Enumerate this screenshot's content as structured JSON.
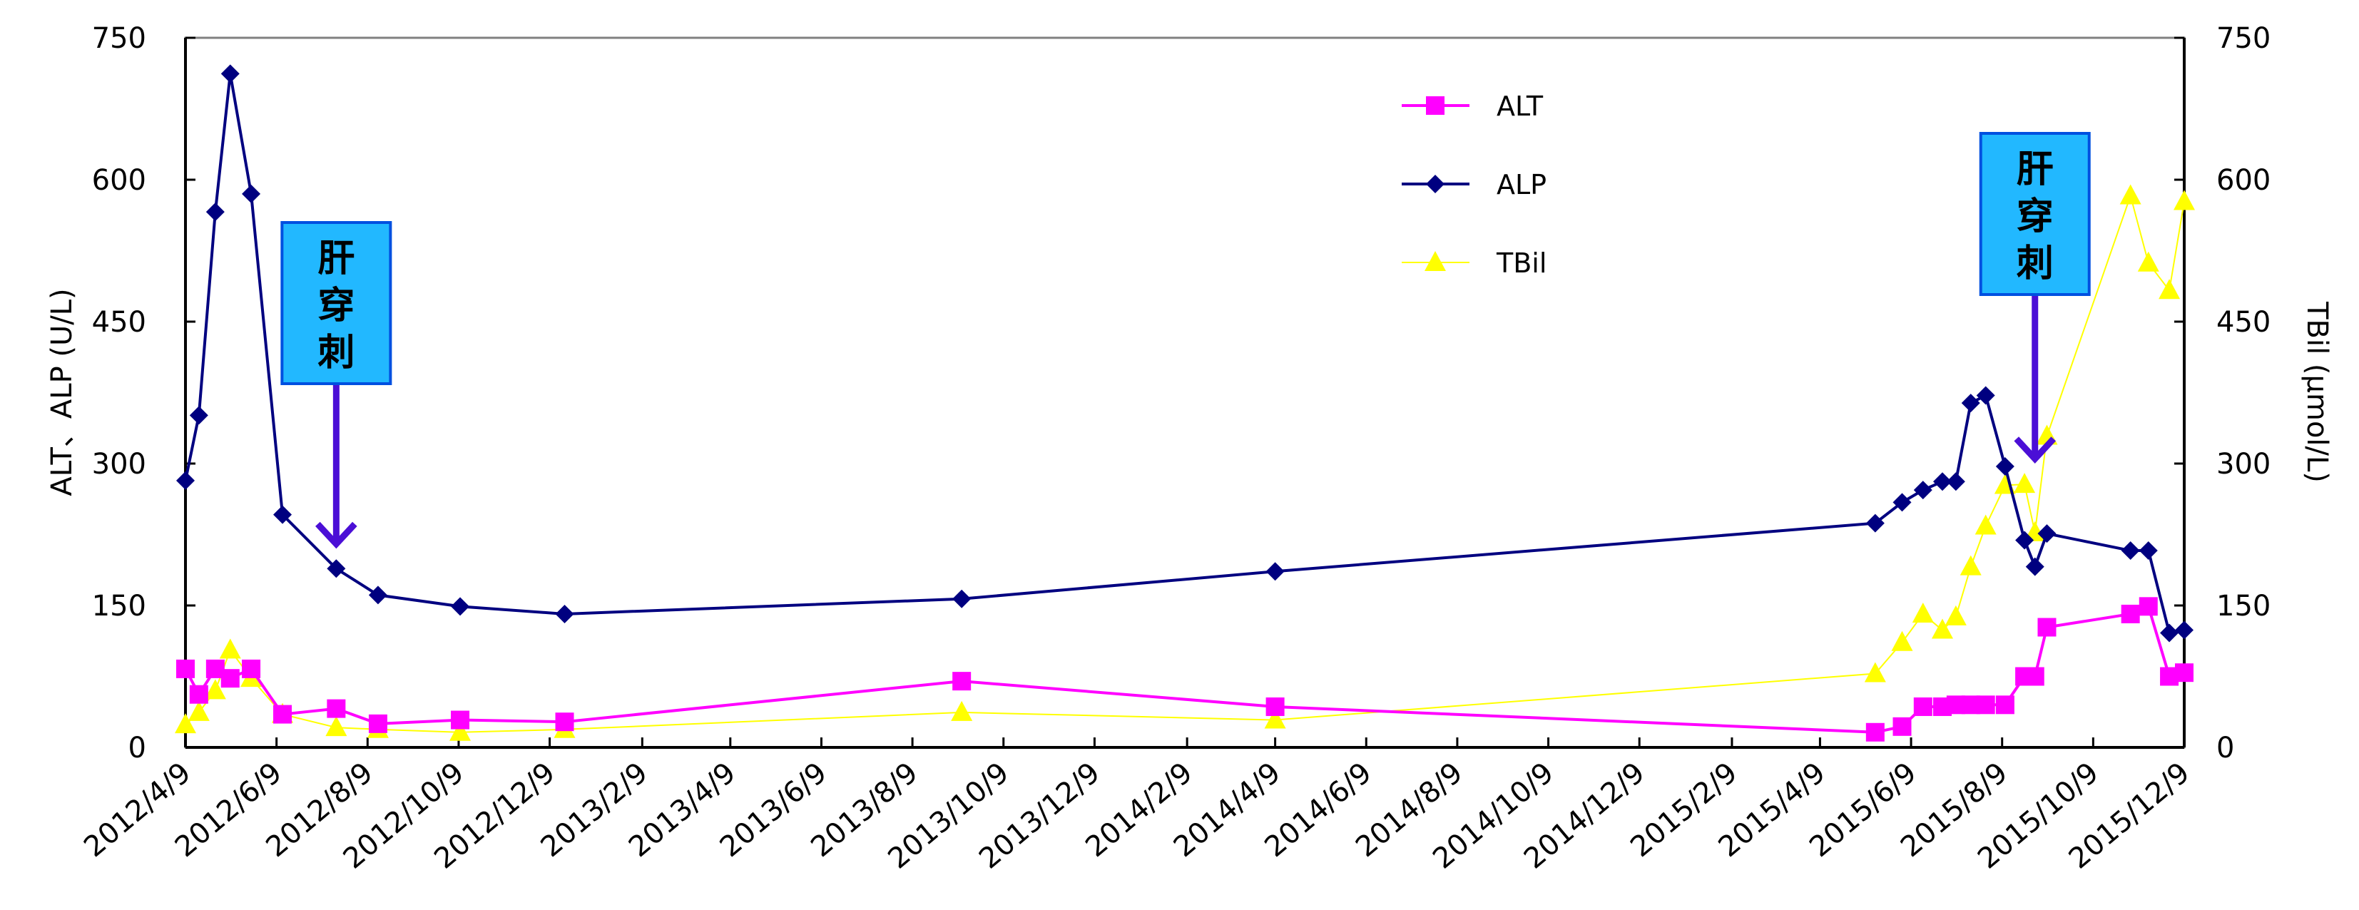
{
  "chart_data": {
    "type": "line",
    "title": "",
    "xlabel": "",
    "ylabel": "ALT、ALP (U/L)",
    "y2label": "TBil (μmol/L)",
    "xlim": [
      "2012-04-09",
      "2015-12-09"
    ],
    "ylim": [
      0,
      750
    ],
    "y2lim": [
      0,
      750
    ],
    "yticks": [
      0,
      150,
      300,
      450,
      600,
      750
    ],
    "xtick_labels": [
      "2012/4/9",
      "2012/6/9",
      "2012/8/9",
      "2012/10/9",
      "2012/12/9",
      "2013/2/9",
      "2013/4/9",
      "2013/6/9",
      "2013/8/9",
      "2013/10/9",
      "2013/12/9",
      "2014/2/9",
      "2014/4/9",
      "2014/6/9",
      "2014/8/9",
      "2014/10/9",
      "2014/12/9",
      "2015/2/9",
      "2015/4/9",
      "2015/6/9",
      "2015/8/9",
      "2015/10/9",
      "2015/12/9"
    ],
    "legend_position": "top-right-center",
    "x": [
      "2012-04-09",
      "2012-04-18",
      "2012-04-29",
      "2012-05-09",
      "2012-05-23",
      "2012-06-13",
      "2012-07-19",
      "2012-08-16",
      "2012-10-10",
      "2012-12-19",
      "2013-09-11",
      "2014-04-09",
      "2015-05-16",
      "2015-06-03",
      "2015-06-17",
      "2015-06-30",
      "2015-07-09",
      "2015-07-19",
      "2015-07-29",
      "2015-08-11",
      "2015-08-24",
      "2015-08-31",
      "2015-09-08",
      "2015-11-03",
      "2015-11-15",
      "2015-11-29",
      "2015-12-09"
    ],
    "series": [
      {
        "name": "ALT",
        "axis": "left",
        "color": "#FF00FF",
        "marker": "square",
        "values": [
          83,
          56,
          83,
          73,
          83,
          35,
          41,
          25,
          29,
          27,
          70,
          43,
          16,
          22,
          43,
          43,
          45,
          45,
          45,
          45,
          75,
          75,
          127,
          141,
          149,
          75,
          79
        ]
      },
      {
        "name": "ALP",
        "axis": "left",
        "color": "#000080",
        "marker": "diamond",
        "values": [
          282,
          351,
          566,
          712,
          585,
          246,
          189,
          161,
          149,
          141,
          157,
          186,
          237,
          259,
          272,
          281,
          281,
          364,
          372,
          297,
          219,
          191,
          226,
          208,
          208,
          121,
          124
        ]
      },
      {
        "name": "TBil",
        "axis": "right",
        "color": "#FFFF00",
        "marker": "triangle",
        "values": [
          24,
          37,
          60,
          103,
          73,
          35,
          21,
          19,
          16,
          19,
          37,
          29,
          78,
          111,
          141,
          124,
          138,
          191,
          234,
          277,
          278,
          227,
          329,
          583,
          512,
          483,
          577
        ]
      }
    ],
    "annotations": [
      {
        "text": [
          "肝",
          "穿",
          "刺"
        ],
        "points_to_date": "2012-07-19",
        "points_to_value": 215,
        "box_color": "#22B8FF",
        "arrow_color": "#4B0FD6"
      },
      {
        "text": [
          "肝",
          "穿",
          "刺"
        ],
        "points_to_date": "2015-08-31",
        "points_to_value": 305,
        "box_color": "#22B8FF",
        "arrow_color": "#4B0FD6"
      }
    ]
  }
}
